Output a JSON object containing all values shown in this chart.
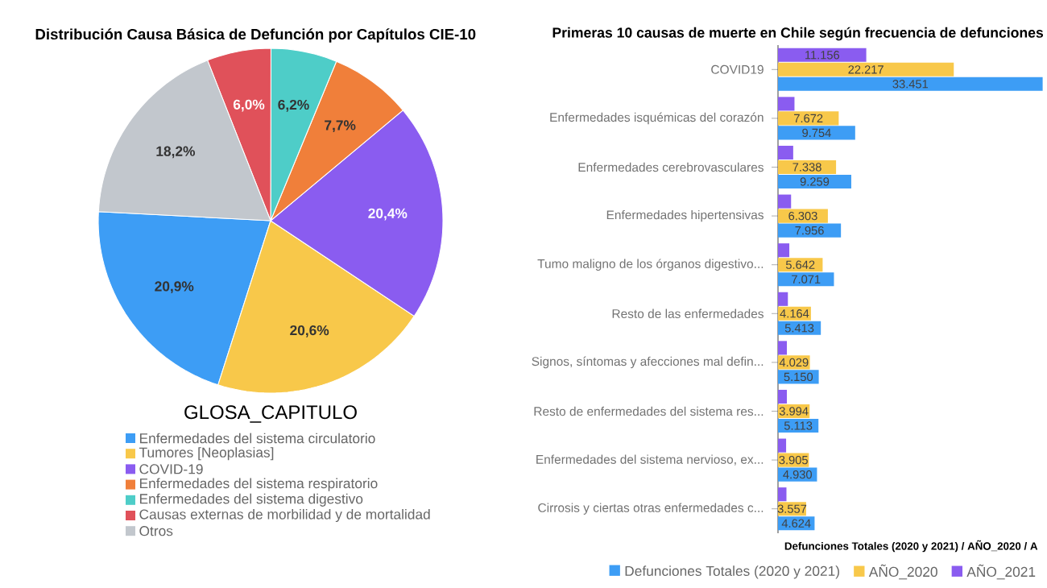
{
  "chart_data": [
    {
      "type": "pie",
      "title": "Distribución Causa Básica de Defunción por Capítulos CIE-10",
      "legend_title": "GLOSA_CAPITULO",
      "legend": "bottom",
      "categories": [
        "Enfermedades del sistema circulatorio",
        "Tumores [Neoplasias]",
        "COVID-19",
        "Enfermedades del sistema respiratorio",
        "Enfermedades del sistema digestivo",
        "Causas externas de morbilidad y de mortalidad",
        "Otros"
      ],
      "values": [
        20.9,
        20.6,
        20.4,
        7.7,
        6.2,
        6.0,
        18.2
      ],
      "value_labels": [
        "20,9%",
        "20,6%",
        "20,4%",
        "7,7%",
        "6,2%",
        "6,0%",
        "18,2%"
      ],
      "colors": [
        "#3d9df5",
        "#f8c84a",
        "#8a5cf0",
        "#f07f3a",
        "#4ecdc8",
        "#e0515a",
        "#c2c7cd"
      ]
    },
    {
      "type": "bar",
      "orientation": "horizontal",
      "title": "Primeras 10 causas de muerte en Chile según frecuencia de defunciones",
      "xlabel": "Defunciones Totales (2020 y 2021) / AÑO_2020 / A",
      "legend": "bottom",
      "tick_labels": "y",
      "xlim": [
        0,
        34000
      ],
      "categories": [
        "COVID19",
        "Enfermedades isquémicas del corazón",
        "Enfermedades cerebrovasculares",
        "Enfermedades hipertensivas",
        "Tumo maligno de los órganos digestivo...",
        "Resto de las enfermedades",
        "Signos, síntomas y afecciones mal defin...",
        "Resto de enfermedades del sistema res...",
        "Enfermedades del sistema nervioso, ex...",
        "Cirrosis y ciertas otras enfermedades c..."
      ],
      "series": [
        {
          "name": "Defunciones Totales (2020 y 2021)",
          "color": "#3d9df5",
          "values": [
            33451,
            9754,
            9259,
            7956,
            7071,
            5413,
            5150,
            5113,
            4930,
            4624
          ],
          "value_labels": [
            "33.451",
            "9.754",
            "9.259",
            "7.956",
            "7.071",
            "5.413",
            "5.150",
            "5.113",
            "4.930",
            "4.624"
          ]
        },
        {
          "name": "AÑO_2020",
          "color": "#f8c84a",
          "values": [
            22217,
            7672,
            7338,
            6303,
            5642,
            4164,
            4029,
            3994,
            3905,
            3557
          ],
          "value_labels": [
            "22.217",
            "7.672",
            "7.338",
            "6.303",
            "5.642",
            "4.164",
            "4.029",
            "3.994",
            "3.905",
            "3.557"
          ]
        },
        {
          "name": "AÑO_2021",
          "color": "#8a5cf0",
          "values": [
            11156,
            2082,
            1921,
            1653,
            1429,
            1249,
            1121,
            1119,
            1025,
            1067
          ],
          "value_labels": [
            "11.156",
            null,
            null,
            null,
            null,
            null,
            null,
            null,
            null,
            null
          ]
        }
      ]
    }
  ]
}
